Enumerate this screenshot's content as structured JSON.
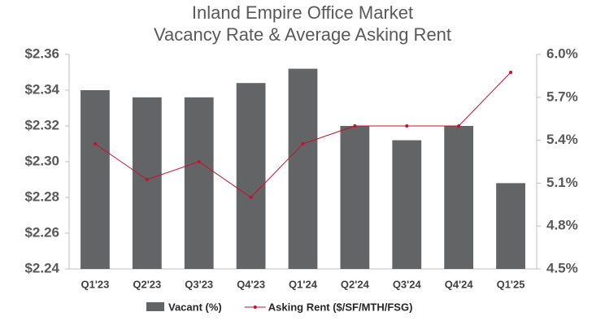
{
  "chart_data": {
    "type": "bar-line",
    "title": [
      "Inland Empire Office Market",
      "Vacancy Rate & Average Asking Rent"
    ],
    "categories": [
      "Q1'23",
      "Q2'23",
      "Q3'23",
      "Q4'23",
      "Q1'24",
      "Q2'24",
      "Q3'24",
      "Q4'24",
      "Q1'25"
    ],
    "series": [
      {
        "name": "Vacant (%)",
        "kind": "bar",
        "axis": "y2",
        "color": "#636466",
        "values": [
          5.75,
          5.7,
          5.7,
          5.8,
          5.9,
          5.5,
          5.4,
          5.5,
          5.1
        ]
      },
      {
        "name": "Asking Rent ($/SF/MTH/FSG)",
        "kind": "line",
        "axis": "y",
        "color": "#c8102e",
        "values": [
          2.31,
          2.29,
          2.3,
          2.28,
          2.31,
          2.32,
          2.32,
          2.32,
          2.35
        ]
      }
    ],
    "ylim": [
      2.24,
      2.36
    ],
    "yticks": [
      {
        "value": 2.24,
        "label": "$2.24"
      },
      {
        "value": 2.26,
        "label": "$2.26"
      },
      {
        "value": 2.28,
        "label": "$2.28"
      },
      {
        "value": 2.3,
        "label": "$2.30"
      },
      {
        "value": 2.32,
        "label": "$2.32"
      },
      {
        "value": 2.34,
        "label": "$2.34"
      },
      {
        "value": 2.36,
        "label": "$2.36"
      }
    ],
    "y2lim": [
      4.5,
      6.0
    ],
    "y2ticks": [
      {
        "value": 4.5,
        "label": "4.5%"
      },
      {
        "value": 4.8,
        "label": "4.8%"
      },
      {
        "value": 5.1,
        "label": "5.1%"
      },
      {
        "value": 5.4,
        "label": "5.4%"
      },
      {
        "value": 5.7,
        "label": "5.7%"
      },
      {
        "value": 6.0,
        "label": "6.0%"
      }
    ],
    "grid": false
  }
}
